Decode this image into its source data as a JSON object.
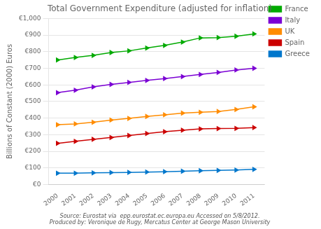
{
  "chart_data": {
    "type": "line",
    "title": "Total Government Expenditure (adjusted for inflation)",
    "ylabel": "Billions of Constant (2000) Euros",
    "annotations": [
      "Source: Eurostat via  epp.eurostat.ec.europa.eu Accessed on 5/8/2012.\nProduced by: Veronique de Rugy, Mercatus Center at George Mason University"
    ],
    "x": [
      2000,
      2001,
      2002,
      2003,
      2004,
      2005,
      2006,
      2007,
      2008,
      2009,
      2010,
      2011
    ],
    "xlim": [
      1999.5,
      2011.6
    ],
    "xticks": [
      2000,
      2001,
      2002,
      2003,
      2004,
      2005,
      2006,
      2007,
      2008,
      2009,
      2010,
      2011
    ],
    "series": [
      {
        "name": "France",
        "color": "#00aa00",
        "marker": "triangle-right",
        "values": [
          750,
          765,
          778,
          795,
          805,
          822,
          838,
          858,
          883,
          885,
          893,
          907
        ]
      },
      {
        "name": "Italy",
        "color": "#7b00d4",
        "marker": "triangle-right",
        "values": [
          553,
          568,
          588,
          603,
          615,
          627,
          638,
          650,
          663,
          675,
          690,
          700
        ]
      },
      {
        "name": "UK",
        "color": "#ff8c00",
        "marker": "triangle-right",
        "values": [
          360,
          365,
          375,
          388,
          398,
          410,
          420,
          430,
          435,
          440,
          452,
          468
        ]
      },
      {
        "name": "Spain",
        "color": "#cc0000",
        "marker": "triangle-right",
        "values": [
          248,
          260,
          272,
          283,
          295,
          307,
          318,
          327,
          335,
          337,
          338,
          343
        ]
      },
      {
        "name": "Greece",
        "color": "#0077cc",
        "marker": "triangle-right",
        "values": [
          68,
          68,
          70,
          72,
          73,
          75,
          77,
          80,
          83,
          85,
          87,
          91
        ]
      }
    ],
    "ylim": [
      0,
      1000
    ],
    "yticks": [
      {
        "value": 0,
        "label": "€0"
      },
      {
        "value": 100,
        "label": "€100"
      },
      {
        "value": 200,
        "label": "€200"
      },
      {
        "value": 300,
        "label": "€300"
      },
      {
        "value": 400,
        "label": "€400"
      },
      {
        "value": 500,
        "label": "€500"
      },
      {
        "value": 600,
        "label": "€600"
      },
      {
        "value": 700,
        "label": "€700"
      },
      {
        "value": 800,
        "label": "€800"
      },
      {
        "value": 900,
        "label": "€900"
      },
      {
        "value": 1000,
        "label": "€1,000"
      }
    ],
    "grid": "y",
    "legend": "right"
  }
}
